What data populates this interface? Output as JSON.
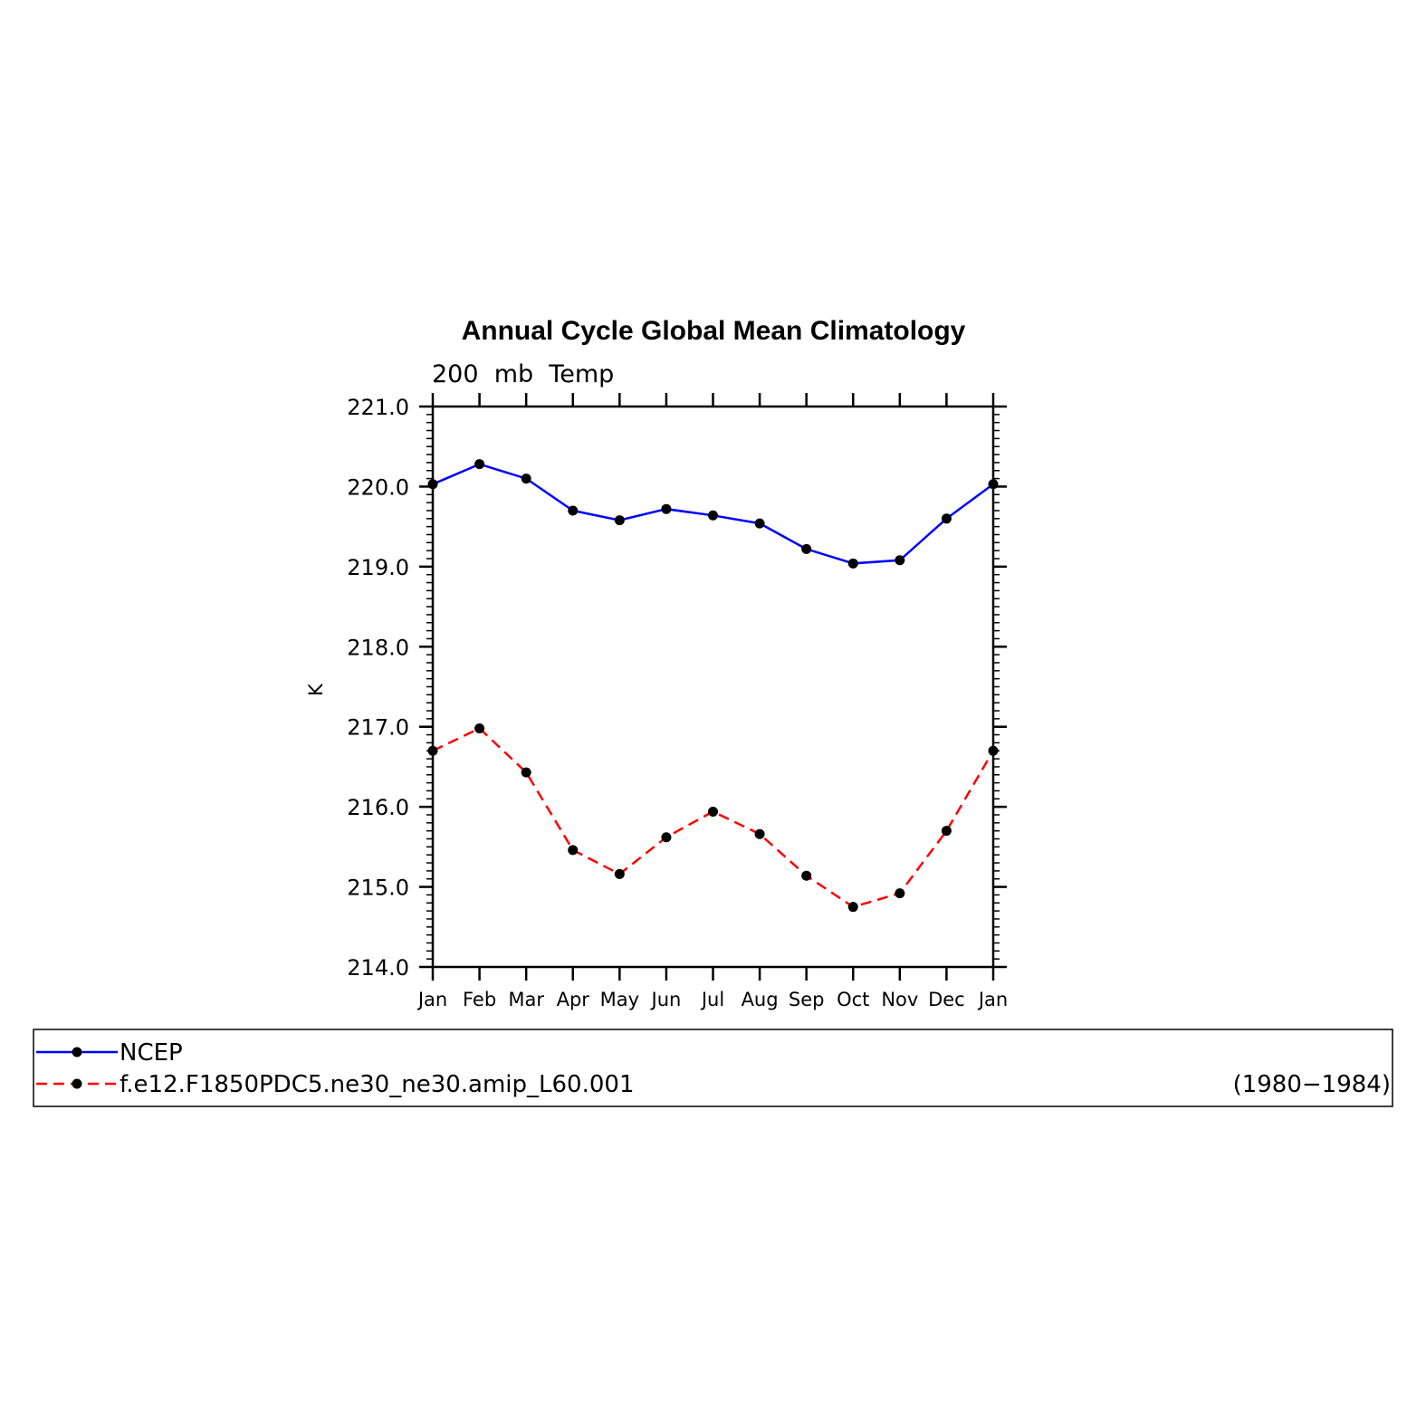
{
  "chart_data": {
    "type": "line",
    "title": "Annual Cycle Global Mean Climatology",
    "subtitle": "200  mb  Temp",
    "xlabel": "",
    "ylabel": "K",
    "categories": [
      "Jan",
      "Feb",
      "Mar",
      "Apr",
      "May",
      "Jun",
      "Jul",
      "Aug",
      "Sep",
      "Oct",
      "Nov",
      "Dec",
      "Jan"
    ],
    "ylim": [
      214.0,
      221.0
    ],
    "yticks": [
      "214.0",
      "215.0",
      "216.0",
      "217.0",
      "218.0",
      "219.0",
      "220.0",
      "221.0"
    ],
    "grid": false,
    "legend_position": "bottom",
    "series": [
      {
        "name": "NCEP",
        "color": "#0000ff",
        "line_style": "solid",
        "marker": "filled-circle",
        "values": [
          220.03,
          220.28,
          220.1,
          219.7,
          219.58,
          219.72,
          219.64,
          219.54,
          219.22,
          219.04,
          219.08,
          219.6,
          220.03
        ]
      },
      {
        "name": "f.e12.F1850PDC5.ne30_ne30.amip_L60.001",
        "color": "#ff0000",
        "line_style": "dashed",
        "marker": "filled-circle",
        "values": [
          216.7,
          216.98,
          216.43,
          215.46,
          215.16,
          215.62,
          215.94,
          215.66,
          215.14,
          214.75,
          214.92,
          215.7,
          216.7
        ]
      }
    ],
    "annotation": "(1980−1984)"
  }
}
